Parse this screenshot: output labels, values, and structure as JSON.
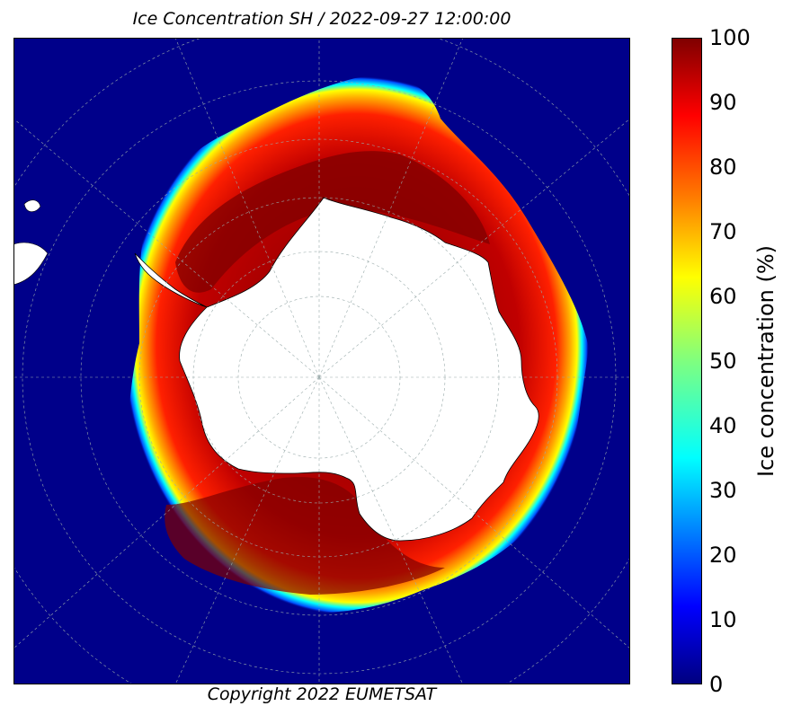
{
  "title": "Ice Concentration SH / 2022-09-27 12:00:00",
  "copyright": "Copyright 2022 EUMETSAT",
  "colorbar": {
    "label": "Ice concentration (%)",
    "ticks": [
      "0",
      "10",
      "20",
      "30",
      "40",
      "50",
      "60",
      "70",
      "80",
      "90",
      "100"
    ],
    "min": 0,
    "max": 100
  },
  "colors": {
    "ocean": "#00008a",
    "land": "#ffffff",
    "jet": [
      "#00007f",
      "#0000ff",
      "#007fff",
      "#00ffff",
      "#7fff7f",
      "#ffff00",
      "#ff7f00",
      "#ff0000",
      "#7f0000"
    ]
  }
}
